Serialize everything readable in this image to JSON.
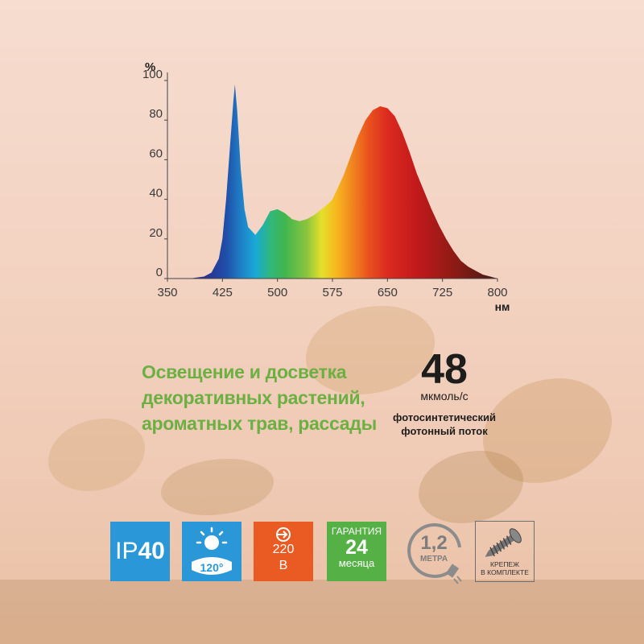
{
  "chart_data": {
    "type": "area",
    "ylabel": "%",
    "xlabel": "нм",
    "ylim": [
      0,
      100
    ],
    "xlim": [
      350,
      800
    ],
    "y_ticks": [
      "0",
      "20",
      "40",
      "60",
      "80",
      "100"
    ],
    "x_ticks": [
      "350",
      "425",
      "500",
      "575",
      "650",
      "725",
      "800"
    ],
    "series": [
      {
        "x": [
          380,
          400,
          410,
          420,
          425,
          430,
          435,
          440,
          442,
          445,
          450,
          455,
          460,
          465,
          470,
          480,
          490,
          500,
          510,
          520,
          530,
          540,
          550,
          560,
          570,
          575,
          580,
          590,
          600,
          610,
          620,
          630,
          640,
          650,
          660,
          670,
          680,
          690,
          700,
          710,
          720,
          730,
          740,
          750,
          760,
          770,
          780,
          790,
          800
        ],
        "values": [
          0,
          1,
          3,
          10,
          20,
          40,
          65,
          90,
          98,
          85,
          55,
          35,
          26,
          24,
          22,
          27,
          34,
          35,
          33,
          30,
          29,
          30,
          32,
          35,
          38,
          40,
          44,
          52,
          62,
          72,
          80,
          85,
          87,
          86,
          82,
          74,
          64,
          53,
          44,
          35,
          27,
          20,
          14,
          9,
          6,
          4,
          2,
          1,
          0
        ]
      }
    ]
  },
  "headline": {
    "line1": "Освещение и досветка",
    "line2": "декоративных растений,",
    "line3": "ароматных трав, рассады"
  },
  "flux": {
    "value": "48",
    "unit": "мкмоль/с",
    "desc_line1": "фотосинтетический",
    "desc_line2": "фотонный поток"
  },
  "icons": {
    "ip_prefix": "IP",
    "ip_value": "40",
    "angle": "120°",
    "voltage_value": "220",
    "voltage_unit": "В",
    "warranty_label": "ГАРАНТИЯ",
    "warranty_value": "24",
    "warranty_unit": "месяца",
    "cable_length": "1,2",
    "cable_unit": "МЕТРА",
    "mount_line1": "КРЕПЕЖ",
    "mount_line2": "В КОМПЛЕКТЕ"
  },
  "colors": {
    "blue": "#2a98d8",
    "orange": "#ea5b24",
    "green": "#55b046",
    "headline_green": "#6cb043"
  }
}
